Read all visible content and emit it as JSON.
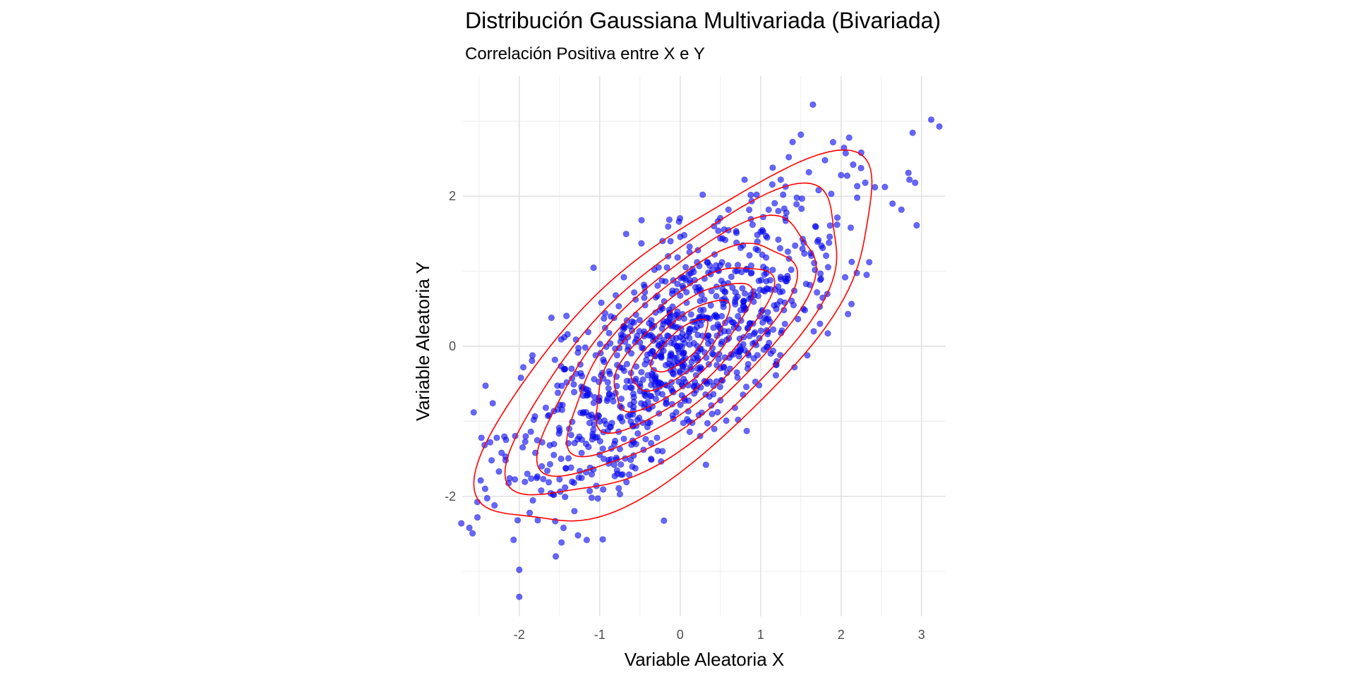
{
  "chart_data": {
    "type": "scatter",
    "title": "Distribución Gaussiana Multivariada (Bivariada)",
    "subtitle": "Correlación Positiva entre X e Y",
    "xlabel": "Variable Aleatoria X",
    "ylabel": "Variable Aleatoria Y",
    "xlim": [
      -2.7,
      3.3
    ],
    "ylim": [
      -3.6,
      3.6
    ],
    "x_ticks": [
      -2,
      -1,
      0,
      1,
      2,
      3
    ],
    "x_tick_labels": [
      "-2",
      "-1",
      "0",
      "1",
      "2",
      "3"
    ],
    "y_ticks": [
      -2,
      0,
      2
    ],
    "y_tick_labels": [
      "-2",
      "0",
      "2"
    ],
    "grid": true,
    "legend": "none",
    "point_color": "#0000ff",
    "contour_color": "#ff0000",
    "correlation": 0.75,
    "n_points": 1000,
    "series": [
      {
        "type": "scatter",
        "points": [
          [
            -2.72,
            -2.36
          ],
          [
            -2.62,
            -2.42
          ],
          [
            -2.52,
            -2.28
          ],
          [
            -2.47,
            -1.22
          ],
          [
            -2.33,
            -0.76
          ],
          [
            -2.28,
            -1.22
          ],
          [
            -2.22,
            -1.42
          ],
          [
            -2.17,
            -1.52
          ],
          [
            -2.12,
            -1.76
          ],
          [
            -2.07,
            -2.58
          ],
          [
            -2.02,
            -2.32
          ],
          [
            -2.0,
            -2.98
          ],
          [
            -2.0,
            -3.34
          ],
          [
            -1.98,
            -0.42
          ],
          [
            -1.95,
            -0.28
          ],
          [
            -1.92,
            -1.2
          ],
          [
            -1.9,
            -1.7
          ],
          [
            -1.87,
            -2.22
          ],
          [
            -1.82,
            -0.98
          ],
          [
            -1.8,
            -1.42
          ],
          [
            -1.77,
            -2.32
          ],
          [
            -1.72,
            -1.6
          ],
          [
            -1.67,
            -0.82
          ],
          [
            -1.62,
            -1.32
          ],
          [
            -1.6,
            0.38
          ],
          [
            -1.57,
            -1.98
          ],
          [
            -1.52,
            -0.62
          ],
          [
            -1.48,
            -1.5
          ],
          [
            -1.45,
            -2.42
          ],
          [
            -1.4,
            0.16
          ],
          [
            -1.38,
            -1.1
          ],
          [
            -1.35,
            -0.3
          ],
          [
            -1.32,
            -1.82
          ],
          [
            -1.27,
            -2.52
          ],
          [
            -1.22,
            -0.58
          ],
          [
            -1.17,
            -1.3
          ],
          [
            -1.12,
            -1.62
          ],
          [
            -1.1,
            -2.02
          ],
          [
            -1.05,
            -0.12
          ],
          [
            -1.02,
            -0.92
          ],
          [
            -0.98,
            0.58
          ],
          [
            -0.95,
            -1.5
          ],
          [
            -0.9,
            -0.48
          ],
          [
            -0.87,
            -1.08
          ],
          [
            -0.82,
            0.38
          ],
          [
            -0.78,
            -1.7
          ],
          [
            -0.75,
            -0.28
          ],
          [
            -0.72,
            -1.0
          ],
          [
            -0.7,
            0.92
          ],
          [
            -0.65,
            0.12
          ],
          [
            -0.62,
            -0.78
          ],
          [
            -0.58,
            -1.28
          ],
          [
            -0.55,
            0.42
          ],
          [
            -0.5,
            -0.5
          ],
          [
            -0.48,
            1.68
          ],
          [
            -0.45,
            0.82
          ],
          [
            -0.42,
            -0.18
          ],
          [
            -0.4,
            -1.02
          ],
          [
            -0.35,
            0.28
          ],
          [
            -0.32,
            1.02
          ],
          [
            -0.28,
            -0.62
          ],
          [
            -0.25,
            0.48
          ],
          [
            -0.22,
            -1.4
          ],
          [
            -0.2,
            0.08
          ],
          [
            -0.15,
            1.2
          ],
          [
            -0.12,
            -0.32
          ],
          [
            -0.1,
            0.7
          ],
          [
            -0.05,
            -0.88
          ],
          [
            -0.02,
            0.38
          ],
          [
            0.0,
            0.12
          ],
          [
            0.02,
            -0.2
          ],
          [
            0.05,
            1.48
          ],
          [
            0.08,
            0.58
          ],
          [
            0.1,
            -0.52
          ],
          [
            0.12,
            0.88
          ],
          [
            0.15,
            -1.02
          ],
          [
            0.18,
            0.22
          ],
          [
            0.22,
            1.28
          ],
          [
            0.25,
            -0.28
          ],
          [
            0.28,
            2.02
          ],
          [
            0.3,
            0.62
          ],
          [
            0.32,
            -1.58
          ],
          [
            0.35,
            0.98
          ],
          [
            0.4,
            -0.1
          ],
          [
            0.42,
            1.6
          ],
          [
            0.45,
            0.4
          ],
          [
            0.5,
            -0.72
          ],
          [
            0.52,
            1.12
          ],
          [
            0.55,
            0.2
          ],
          [
            0.6,
            1.82
          ],
          [
            0.62,
            -0.3
          ],
          [
            0.65,
            0.78
          ],
          [
            0.7,
            1.38
          ],
          [
            0.72,
            -0.98
          ],
          [
            0.75,
            0.48
          ],
          [
            0.8,
            2.22
          ],
          [
            0.82,
            1.02
          ],
          [
            0.85,
            -0.12
          ],
          [
            0.9,
            1.62
          ],
          [
            0.92,
            0.68
          ],
          [
            0.95,
            2.02
          ],
          [
            0.98,
            -0.52
          ],
          [
            1.02,
            1.22
          ],
          [
            1.05,
            0.38
          ],
          [
            1.1,
            1.82
          ],
          [
            1.12,
            0.88
          ],
          [
            1.15,
            2.38
          ],
          [
            1.2,
            -0.2
          ],
          [
            1.22,
            1.42
          ],
          [
            1.25,
            2.22
          ],
          [
            1.3,
            0.58
          ],
          [
            1.32,
            1.78
          ],
          [
            1.35,
            2.52
          ],
          [
            1.38,
            1.02
          ],
          [
            1.42,
            -0.28
          ],
          [
            1.45,
            1.98
          ],
          [
            1.5,
            2.82
          ],
          [
            1.52,
            1.3
          ],
          [
            1.55,
            0.48
          ],
          [
            1.6,
            2.32
          ],
          [
            1.65,
            3.22
          ],
          [
            1.68,
            1.6
          ],
          [
            1.72,
            2.08
          ],
          [
            1.75,
            0.9
          ],
          [
            1.8,
            2.48
          ],
          [
            1.85,
            1.38
          ],
          [
            1.9,
            2.72
          ],
          [
            1.95,
            1.62
          ],
          [
            2.0,
            2.28
          ],
          [
            2.05,
            0.92
          ],
          [
            2.1,
            2.78
          ],
          [
            2.12,
            1.58
          ],
          [
            2.15,
            2.42
          ],
          [
            2.2,
            1.98
          ],
          [
            2.25,
            2.58
          ],
          [
            2.3,
            2.18
          ],
          [
            2.35,
            1.12
          ],
          [
            2.42,
            2.12
          ],
          [
            2.75,
            1.82
          ],
          [
            2.85,
            2.22
          ],
          [
            2.92,
            2.18
          ],
          [
            3.12,
            3.02
          ],
          [
            1.28,
            2.02
          ],
          [
            0.68,
            -0.82
          ],
          [
            -0.82,
            -1.58
          ]
        ]
      },
      {
        "type": "density_contours",
        "center": [
          0.0,
          0.0
        ],
        "sigma": [
          1.0,
          1.0
        ],
        "correlation": 0.75,
        "mahalanobis_levels": [
          0.35,
          0.6,
          0.85,
          1.1,
          1.4,
          1.7,
          2.05,
          2.45
        ]
      }
    ]
  }
}
